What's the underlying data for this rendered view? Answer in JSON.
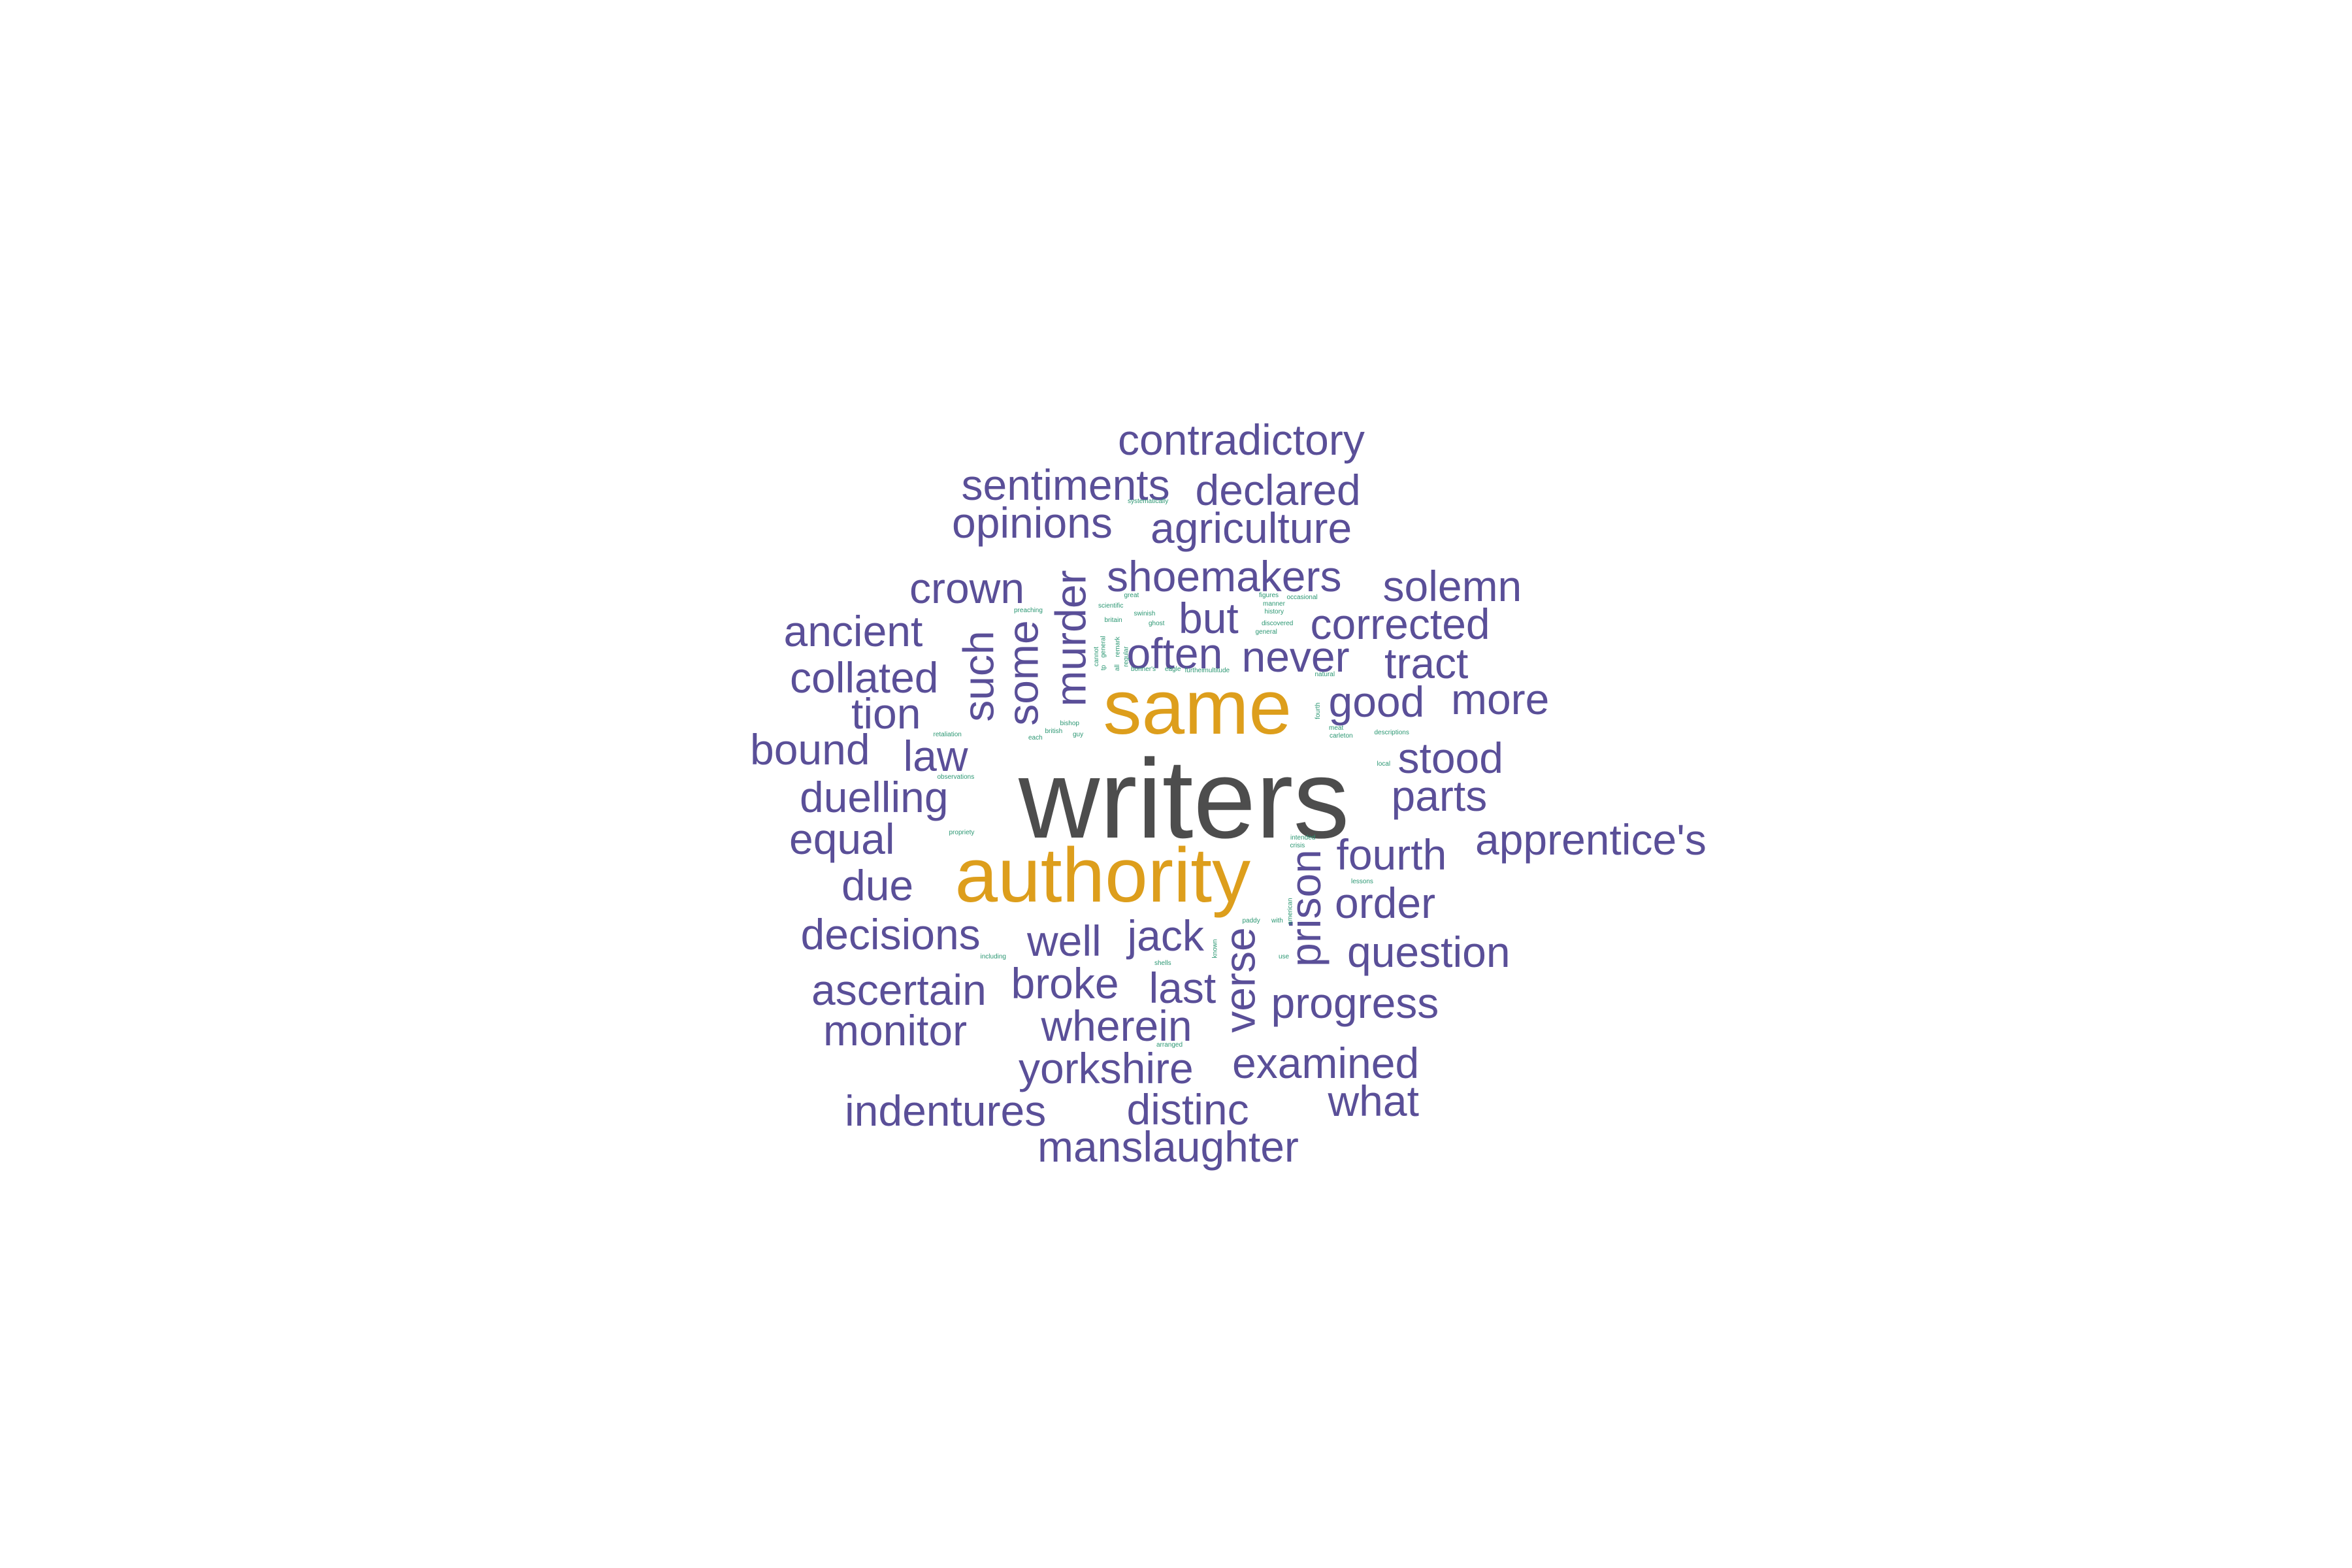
{
  "colors": {
    "dark": "#4d4d4d",
    "gold": "#dd9e1c",
    "purple": "#5a4f98",
    "green": "#2c9773"
  },
  "words": {
    "writers": "writers",
    "same": "same",
    "authority": "authority",
    "contradictory": "contradictory",
    "sentiments": "sentiments",
    "declared": "declared",
    "opinions": "opinions",
    "agriculture": "agriculture",
    "crown": "crown",
    "shoemakers": "shoemakers",
    "solemn": "solemn",
    "ancient": "ancient",
    "but": "but",
    "corrected": "corrected",
    "collated": "collated",
    "often": "often",
    "never": "never",
    "tract": "tract",
    "tion": "tion",
    "good": "good",
    "more": "more",
    "bound": "bound",
    "law": "law",
    "stood": "stood",
    "duelling": "duelling",
    "parts": "parts",
    "equal": "equal",
    "apprentice": "apprentice's",
    "fourth": "fourth",
    "due": "due",
    "order": "order",
    "decisions": "decisions",
    "well": "well",
    "jack": "jack",
    "question": "question",
    "ascertain": "ascertain",
    "broke": "broke",
    "last": "last",
    "progress": "progress",
    "monitor": "monitor",
    "wherein": "wherein",
    "yorkshire": "yorkshire",
    "examined": "examined",
    "indentures": "indentures",
    "distinc": "distinc",
    "what": "what",
    "manslaughter": "manslaughter",
    "such": "such",
    "some": "some",
    "murder": "murder",
    "prison": "prison",
    "verse": "verse",
    "systematically": "systematically",
    "great": "great",
    "figures": "figures",
    "occasional": "occasional",
    "preaching": "preaching",
    "scientific": "scientific",
    "manner": "manner",
    "swinish": "swinish",
    "history": "history",
    "britain": "britain",
    "ghost": "ghost",
    "discovered": "discovered",
    "general": "general",
    "bonners": "bonner's",
    "eagle": "eagle",
    "further": "further",
    "multitude": "multitude",
    "natural": "natural",
    "retaliation": "retaliation",
    "bishop": "bishop",
    "british": "british",
    "each": "each",
    "guy": "guy",
    "meat": "meat",
    "carleton": "carleton",
    "descriptions": "descriptions",
    "local": "local",
    "observations": "observations",
    "propriety": "propriety",
    "intended": "intended",
    "crisis": "crisis",
    "lessons": "lessons",
    "paddy": "paddy",
    "with": "with",
    "including": "including",
    "shells": "shells",
    "use": "use",
    "arranged": "arranged",
    "fourth_small": "fourth",
    "american": "american",
    "known": "known",
    "cannot": "cannot",
    "general_v": "general",
    "remark": "remark",
    "regular": "regular",
    "all": "all",
    "tp": "tp"
  }
}
